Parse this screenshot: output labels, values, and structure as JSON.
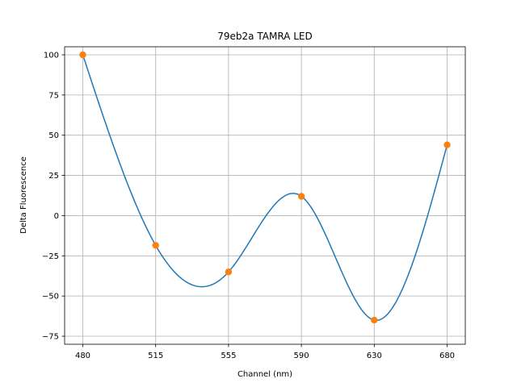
{
  "chart_data": {
    "type": "line",
    "title": "79eb2a TAMRA LED",
    "xlabel": "Channel (nm)",
    "ylabel": "Delta Fluorescence",
    "x_categories": [
      "480",
      "515",
      "555",
      "590",
      "630",
      "680"
    ],
    "yticks": [
      100,
      75,
      50,
      25,
      0,
      -25,
      -50,
      -75
    ],
    "ytick_labels": [
      "100",
      "75",
      "50",
      "25",
      "0",
      "−25",
      "−50",
      "−75"
    ],
    "ylim": [
      -80,
      105
    ],
    "grid": true,
    "series": [
      {
        "kind": "markers",
        "color": "#ff7f0e",
        "values": [
          100,
          -18.5,
          -35,
          12,
          -65,
          44
        ]
      },
      {
        "kind": "smooth-line",
        "color": "#1f77b4",
        "values": [
          100,
          -18.5,
          -35,
          12,
          -65,
          44
        ]
      }
    ]
  }
}
